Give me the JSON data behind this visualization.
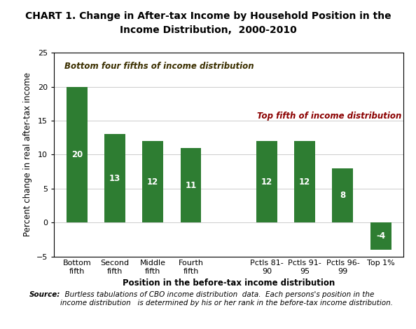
{
  "title": "CHART 1. Change in After-tax Income by Household Position in the\nIncome Distribution,  2000-2010",
  "xlabel": "Position in the before-tax income distribution",
  "ylabel": "Percent change in real after-tax income",
  "categories": [
    "Bottom\nfifth",
    "Second\nfifth",
    "Middle\nfifth",
    "Fourth\nfifth",
    "",
    "Pctls 81-\n90",
    "Pctls 91-\n95",
    "Pctls 96-\n99",
    "Top 1%"
  ],
  "values": [
    20,
    13,
    12,
    11,
    null,
    12,
    12,
    8,
    -4
  ],
  "bar_color": "#2E7D32",
  "ylim": [
    -5,
    25
  ],
  "yticks": [
    -5,
    0,
    5,
    10,
    15,
    20,
    25
  ],
  "annotation_bottom": "Bottom four fifths of income distribution",
  "annotation_top": "Top fifth of income distribution",
  "annotation_bottom_color": "#3B2F00",
  "annotation_top_color": "#8B0000",
  "label_color": "white",
  "source_bold": "Source:",
  "source_text": "  Burtless tabulations of CBO income distribution  data.  Each persons's position in the\nincome distribution   is determined by his or her rank in the before-tax income distribution.",
  "title_fontsize": 10,
  "axis_label_fontsize": 8.5,
  "tick_fontsize": 8,
  "bar_label_fontsize": 8.5,
  "annotation_fontsize": 8.5,
  "source_fontsize": 7.5,
  "bar_width": 0.55
}
